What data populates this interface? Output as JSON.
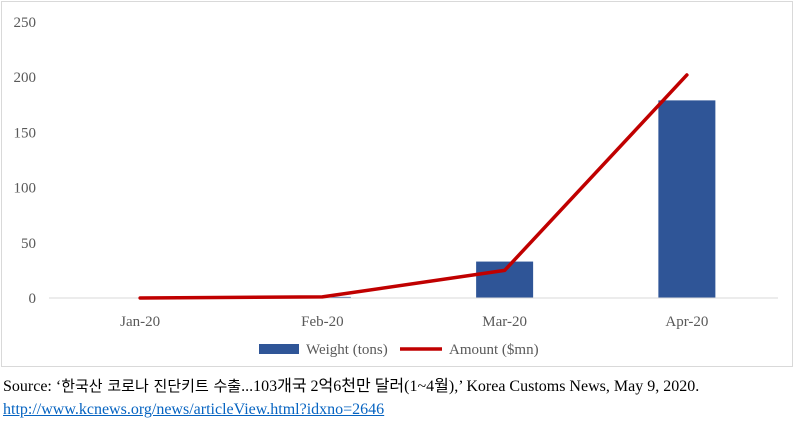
{
  "chart_data": {
    "type": "bar",
    "categories": [
      "Jan-20",
      "Feb-20",
      "Mar-20",
      "Apr-20"
    ],
    "series": [
      {
        "name": "Weight (tons)",
        "kind": "bar",
        "color": "#2f5597",
        "values": [
          0,
          1,
          33,
          179
        ]
      },
      {
        "name": "Amount ($mn)",
        "kind": "line",
        "color": "#c00000",
        "values": [
          0,
          1,
          25,
          202
        ]
      }
    ],
    "ylim": [
      0,
      250
    ],
    "yticks": [
      0,
      50,
      100,
      150,
      200,
      250
    ],
    "grid": false,
    "legend": "bottom"
  },
  "source": {
    "prefix": "Source: ‘",
    "korean_title": "한국산 코로나 진단키트 수출",
    "middle": "...103개국 2억6천만 달러",
    "range": "(1~4월),’ Korea Customs News, May 9, 2020.",
    "url": "http://www.kcnews.org/news/articleView.html?idxno=2646"
  }
}
